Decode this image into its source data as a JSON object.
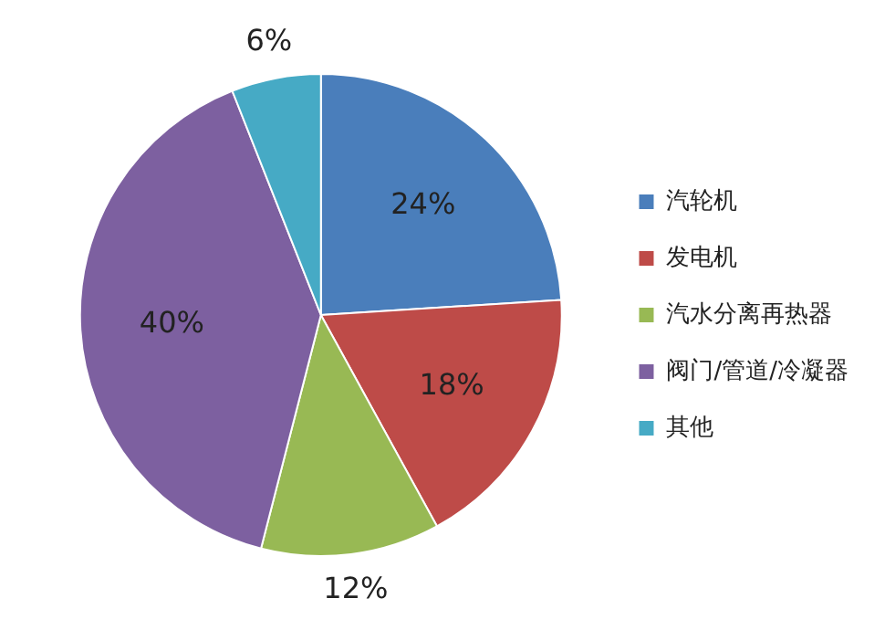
{
  "chart_data": {
    "type": "pie",
    "categories": [
      "汽轮机",
      "发电机",
      "汽水分离再热器",
      "阀门/管道/冷凝器",
      "其他"
    ],
    "values": [
      24,
      18,
      12,
      40,
      6
    ],
    "colors": [
      "#4a7ebb",
      "#be4b48",
      "#98b954",
      "#7d60a0",
      "#46aac5"
    ],
    "value_labels": [
      "24%",
      "18%",
      "12%",
      "40%",
      "6%"
    ],
    "legend": "right"
  }
}
